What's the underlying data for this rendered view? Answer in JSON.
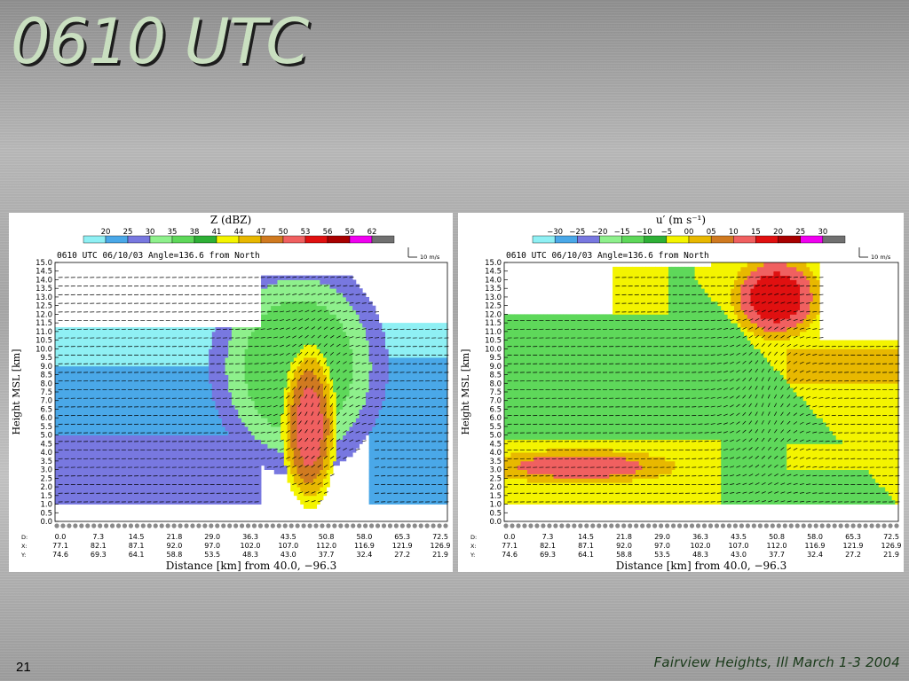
{
  "slide": {
    "title": "0610 UTC",
    "number": "21",
    "footer": "Fairview Heights, Ill March 1-3 2004"
  },
  "chart_data": [
    {
      "type": "heatmap",
      "title": "Z (dBZ)",
      "subtitle": "0610 UTC   06/10/03   Angle=136.6 from North",
      "vector_scale_label": "10 m/s",
      "xlabel": "Distance [km] from 40.0, −96.3",
      "ylabel": "Height MSL [km]",
      "ylim": [
        0.0,
        15.0
      ],
      "xlim": [
        0.0,
        72.5
      ],
      "yticks": [
        "0.0",
        "0.5",
        "1.0",
        "1.5",
        "2.0",
        "2.5",
        "3.0",
        "3.5",
        "4.0",
        "4.5",
        "5.0",
        "5.5",
        "6.0",
        "6.5",
        "7.0",
        "7.5",
        "8.0",
        "8.5",
        "9.0",
        "9.5",
        "10.0",
        "10.5",
        "11.0",
        "11.5",
        "12.0",
        "12.5",
        "13.0",
        "13.5",
        "14.0",
        "14.5",
        "15.0"
      ],
      "x_rows": [
        {
          "label": "D:",
          "values": [
            "0.0",
            "7.3",
            "14.5",
            "21.8",
            "29.0",
            "36.3",
            "43.5",
            "50.8",
            "58.0",
            "65.3",
            "72.5"
          ]
        },
        {
          "label": "X:",
          "values": [
            "77.1",
            "82.1",
            "87.1",
            "92.0",
            "97.0",
            "102.0",
            "107.0",
            "112.0",
            "116.9",
            "121.9",
            "126.9"
          ]
        },
        {
          "label": "Y:",
          "values": [
            "74.6",
            "69.3",
            "64.1",
            "58.8",
            "53.5",
            "48.3",
            "43.0",
            "37.7",
            "32.4",
            "27.2",
            "21.9"
          ]
        }
      ],
      "colorbar": {
        "labels": [
          "20",
          "25",
          "30",
          "35",
          "38",
          "41",
          "44",
          "47",
          "50",
          "53",
          "56",
          "59",
          "62"
        ],
        "colors": [
          "#8ff0f4",
          "#4aa8e8",
          "#7878e0",
          "#8ef08c",
          "#5ed85a",
          "#2eb036",
          "#f4f400",
          "#e8b800",
          "#d07a20",
          "#f06060",
          "#e01010",
          "#a80000",
          "#f000f0",
          "#707070"
        ]
      }
    },
    {
      "type": "heatmap",
      "title": "u′ (m s⁻¹)",
      "subtitle": "0610 UTC   06/10/03   Angle=136.6 from North",
      "vector_scale_label": "10 m/s",
      "xlabel": "Distance [km] from 40.0, −96.3",
      "ylabel": "Height MSL [km]",
      "ylim": [
        0.0,
        15.0
      ],
      "xlim": [
        0.0,
        72.5
      ],
      "yticks": [
        "0.0",
        "0.5",
        "1.0",
        "1.5",
        "2.0",
        "2.5",
        "3.0",
        "3.5",
        "4.0",
        "4.5",
        "5.0",
        "5.5",
        "6.0",
        "6.5",
        "7.0",
        "7.5",
        "8.0",
        "8.5",
        "9.0",
        "9.5",
        "10.0",
        "10.5",
        "11.0",
        "11.5",
        "12.0",
        "12.5",
        "13.0",
        "13.5",
        "14.0",
        "14.5",
        "15.0"
      ],
      "x_rows": [
        {
          "label": "D:",
          "values": [
            "0.0",
            "7.3",
            "14.5",
            "21.8",
            "29.0",
            "36.3",
            "43.5",
            "50.8",
            "58.0",
            "65.3",
            "72.5"
          ]
        },
        {
          "label": "X:",
          "values": [
            "77.1",
            "82.1",
            "87.1",
            "92.0",
            "97.0",
            "102.0",
            "107.0",
            "112.0",
            "116.9",
            "121.9",
            "126.9"
          ]
        },
        {
          "label": "Y:",
          "values": [
            "74.6",
            "69.3",
            "64.1",
            "58.8",
            "53.5",
            "48.3",
            "43.0",
            "37.7",
            "32.4",
            "27.2",
            "21.9"
          ]
        }
      ],
      "colorbar": {
        "labels": [
          "−30",
          "−25",
          "−20",
          "−15",
          "−10",
          "−5",
          "00",
          "05",
          "10",
          "15",
          "20",
          "25",
          "30"
        ],
        "colors": [
          "#8ff0f4",
          "#4aa8e8",
          "#7878e0",
          "#8ef08c",
          "#5ed85a",
          "#2eb036",
          "#f4f400",
          "#e8b800",
          "#d07a20",
          "#f06060",
          "#e01010",
          "#a80000",
          "#f000f0",
          "#707070"
        ]
      }
    }
  ]
}
